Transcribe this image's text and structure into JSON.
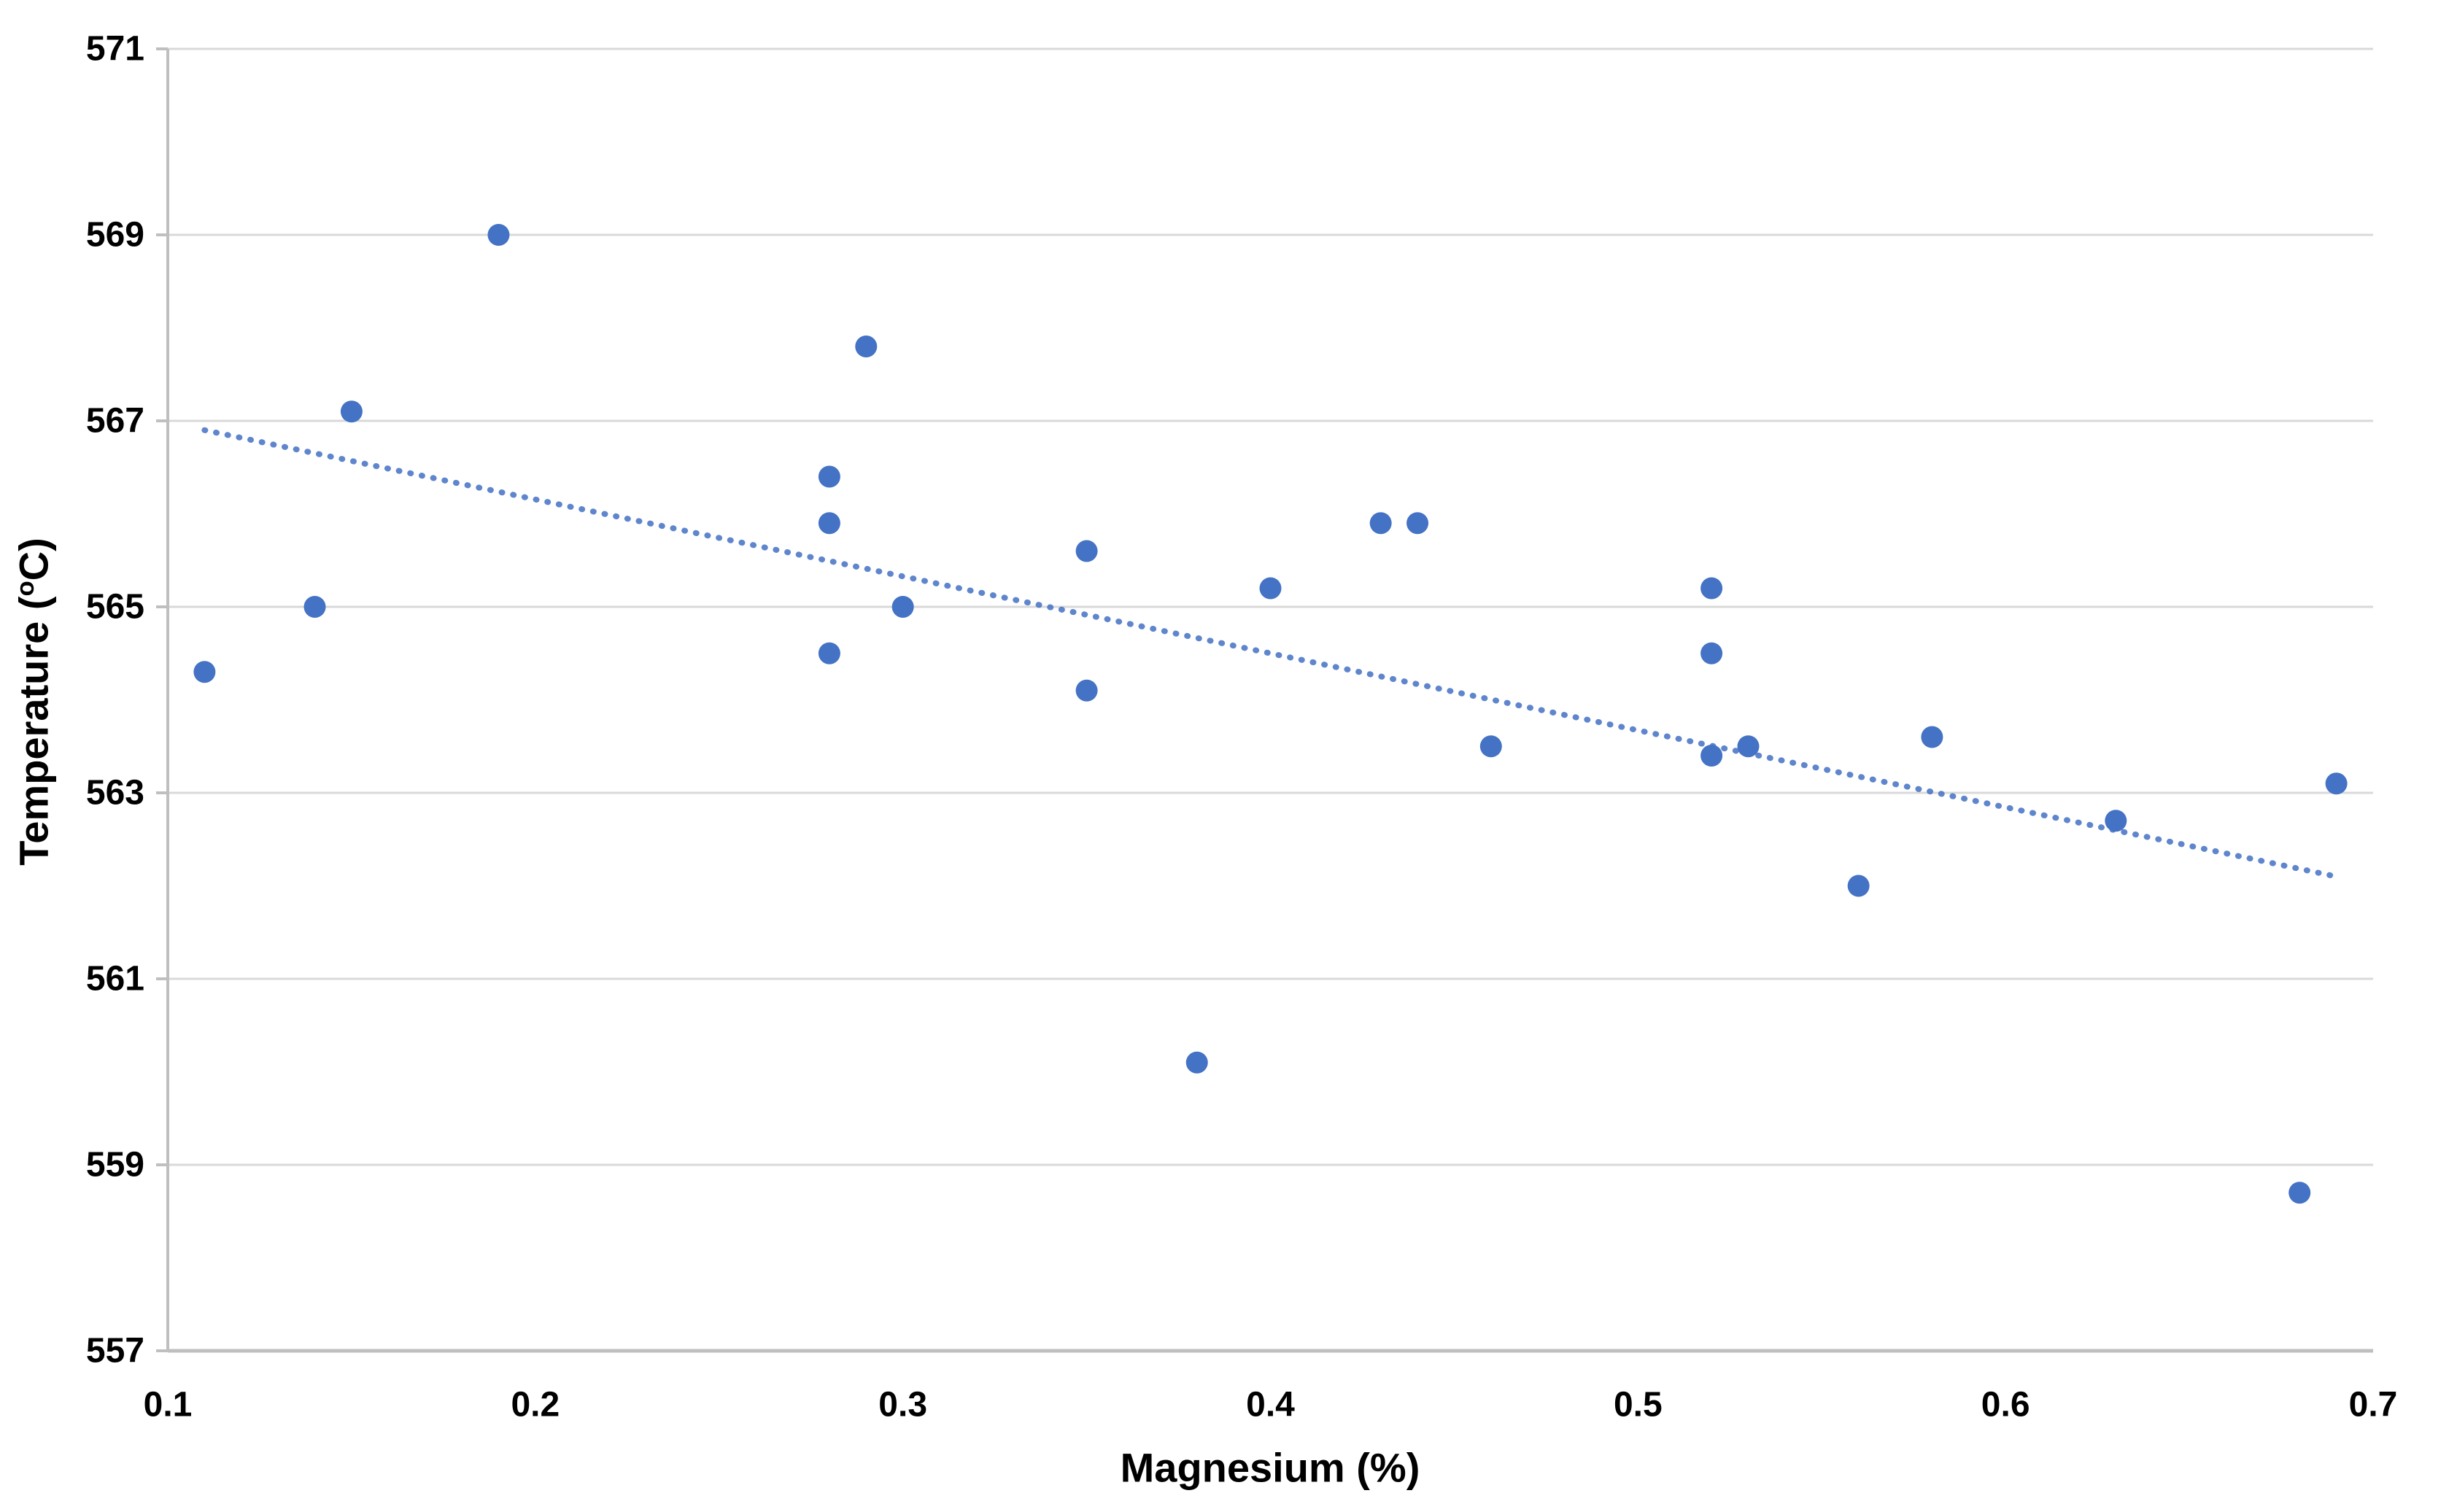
{
  "chart_data": {
    "type": "scatter",
    "title": "",
    "xlabel": "Magnesium (%)",
    "ylabel_parts": {
      "pre": "Temperature (",
      "sup": "o",
      "post": "C)"
    },
    "xlim": [
      0.1,
      0.7
    ],
    "ylim": [
      557,
      571
    ],
    "x_ticks": [
      "0.1",
      "0.2",
      "0.3",
      "0.4",
      "0.5",
      "0.6",
      "0.7"
    ],
    "y_ticks": [
      "557",
      "559",
      "561",
      "563",
      "565",
      "567",
      "569",
      "571"
    ],
    "grid": "horizontal-only",
    "legend_position": "none",
    "points": [
      {
        "x": 0.11,
        "y": 564.3
      },
      {
        "x": 0.14,
        "y": 565.0
      },
      {
        "x": 0.15,
        "y": 567.1
      },
      {
        "x": 0.19,
        "y": 569.0
      },
      {
        "x": 0.28,
        "y": 566.4
      },
      {
        "x": 0.28,
        "y": 565.9
      },
      {
        "x": 0.28,
        "y": 564.5
      },
      {
        "x": 0.29,
        "y": 567.8
      },
      {
        "x": 0.3,
        "y": 565.0
      },
      {
        "x": 0.35,
        "y": 565.6
      },
      {
        "x": 0.35,
        "y": 564.1
      },
      {
        "x": 0.38,
        "y": 560.1
      },
      {
        "x": 0.4,
        "y": 565.2
      },
      {
        "x": 0.43,
        "y": 565.9
      },
      {
        "x": 0.44,
        "y": 565.9
      },
      {
        "x": 0.46,
        "y": 563.5
      },
      {
        "x": 0.52,
        "y": 565.2
      },
      {
        "x": 0.52,
        "y": 564.5
      },
      {
        "x": 0.52,
        "y": 563.4
      },
      {
        "x": 0.53,
        "y": 563.5
      },
      {
        "x": 0.56,
        "y": 562.0
      },
      {
        "x": 0.58,
        "y": 563.6
      },
      {
        "x": 0.63,
        "y": 562.7
      },
      {
        "x": 0.68,
        "y": 558.7
      },
      {
        "x": 0.69,
        "y": 563.1
      }
    ],
    "trendline": {
      "style": "dotted",
      "x_start": 0.11,
      "y_start": 566.9,
      "x_end": 0.69,
      "y_end": 562.1
    },
    "colors": {
      "marker": "#4472C4",
      "trendline": "#4472C4",
      "gridline": "#D9D9D9",
      "axis_line": "#BFBFBF",
      "text": "#000000",
      "background": "#FFFFFF"
    }
  }
}
